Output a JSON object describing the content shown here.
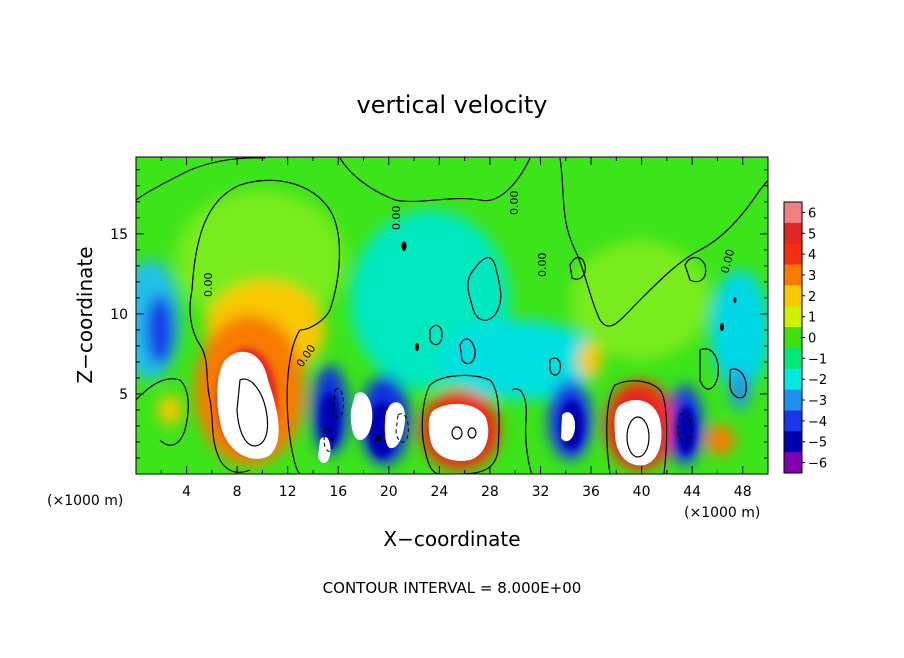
{
  "chart_data": {
    "type": "heatmap",
    "title": "vertical velocity",
    "xlabel": "X−coordinate",
    "ylabel": "Z−coordinate",
    "x_scale_label": "(×1000 m)",
    "y_scale_label": "(×1000 m)",
    "footer": "CONTOUR INTERVAL = 8.000E+00",
    "xlim": [
      0,
      50
    ],
    "ylim": [
      0,
      19.8
    ],
    "x_ticks": [
      "4",
      "8",
      "12",
      "16",
      "20",
      "24",
      "28",
      "32",
      "36",
      "40",
      "44",
      "48"
    ],
    "x_tick_values": [
      4,
      8,
      12,
      16,
      20,
      24,
      28,
      32,
      36,
      40,
      44,
      48
    ],
    "y_ticks": [
      "5",
      "10",
      "15"
    ],
    "y_tick_values": [
      5,
      10,
      15
    ],
    "colorbar": {
      "labels": [
        "6",
        "5",
        "4",
        "3",
        "2",
        "1",
        "0",
        "−1",
        "−2",
        "−3",
        "−4",
        "−5",
        "−6"
      ],
      "values": [
        6,
        5,
        4,
        3,
        2,
        1,
        0,
        -1,
        -2,
        -3,
        -4,
        -5,
        -6
      ],
      "colors": [
        "#f08080",
        "#e02828",
        "#f03010",
        "#f87a00",
        "#f8c800",
        "#d0f000",
        "#40e010",
        "#00e878",
        "#00e8e0",
        "#2090f0",
        "#1838e8",
        "#0000b0",
        "#8000b0"
      ]
    },
    "contour_labels": [
      "0.00",
      "0.00",
      "0.00",
      "0.00",
      "0.00",
      "0.00"
    ],
    "updrafts": [
      {
        "x": 8.4,
        "z": 4.2,
        "w": 6
      },
      {
        "x": 18.0,
        "z": 3.5,
        "w": 6
      },
      {
        "x": 26.0,
        "z": 2.8,
        "w": 6
      },
      {
        "x": 39.2,
        "z": 2.6,
        "w": 6
      },
      {
        "x": 15.5,
        "z": 2.0,
        "w": 6
      },
      {
        "x": 34.0,
        "z": 3.0,
        "w": 6
      },
      {
        "x": 43.5,
        "z": 3.0,
        "w": 6
      },
      {
        "x": 21.0,
        "z": 3.2,
        "w": 6
      }
    ],
    "downdrafts": [
      {
        "x": 1.5,
        "z": 8.5,
        "w": -4
      },
      {
        "x": 16.0,
        "z": 4.0,
        "w": -5
      },
      {
        "x": 20.0,
        "z": 3.0,
        "w": -5
      },
      {
        "x": 33.5,
        "z": 3.5,
        "w": -4
      },
      {
        "x": 43.0,
        "z": 3.0,
        "w": -4
      },
      {
        "x": 47.5,
        "z": 5.0,
        "w": -3
      },
      {
        "x": 25.0,
        "z": 10.0,
        "w": -2
      }
    ]
  }
}
